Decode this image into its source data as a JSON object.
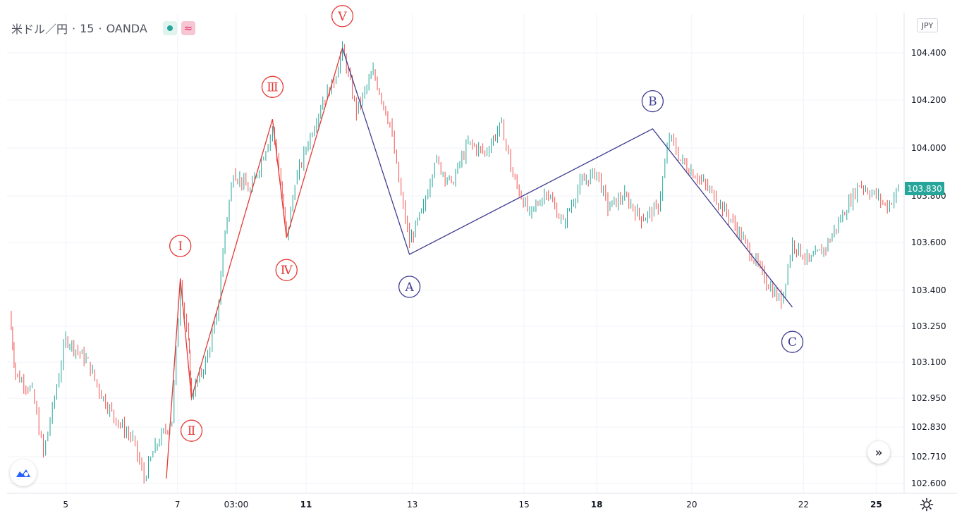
{
  "legend": {
    "symbol": "米ドル／円",
    "sep1": "·",
    "interval": "15",
    "sep2": "·",
    "source": "OANDA",
    "wave_badge": "≈"
  },
  "currency_badge": "JPY",
  "last_price": "103.830",
  "scroll_button": "»",
  "settings_icon": "gear-icon",
  "colors": {
    "up": "#26a69a",
    "down": "#ef5350",
    "impulse": "#e53935",
    "corrective": "#3f3d8f",
    "grid": "#f0f3fa",
    "axis_text": "#131722"
  },
  "chart_data": {
    "type": "line",
    "title": "米ドル／円 · 15 · OANDA",
    "series_name": "USD/JPY 15m candles (approximated as close path)",
    "ylim": [
      102.55,
      104.52
    ],
    "y_ticks": [
      "104.400",
      "104.200",
      "104.000",
      "103.800",
      "103.600",
      "103.400",
      "103.250",
      "103.100",
      "102.950",
      "102.830",
      "102.710",
      "102.600"
    ],
    "y_tick_values": [
      104.4,
      104.2,
      104.0,
      103.8,
      103.6,
      103.4,
      103.25,
      103.1,
      102.95,
      102.83,
      102.71,
      102.6
    ],
    "x_ticks": [
      {
        "label": "5",
        "t": 4.0,
        "bold": false
      },
      {
        "label": "7",
        "t": 6.0,
        "bold": false
      },
      {
        "label": "03:00",
        "t": 7.05,
        "bold": false
      },
      {
        "label": "11",
        "t": 8.3,
        "bold": true
      },
      {
        "label": "13",
        "t": 10.2,
        "bold": false
      },
      {
        "label": "15",
        "t": 12.2,
        "bold": false
      },
      {
        "label": "18",
        "t": 13.5,
        "bold": true
      },
      {
        "label": "20",
        "t": 15.2,
        "bold": false
      },
      {
        "label": "22",
        "t": 17.2,
        "bold": false
      },
      {
        "label": "25",
        "t": 18.5,
        "bold": true
      }
    ],
    "x_range": [
      2.95,
      19.0
    ],
    "price_path": [
      [
        3.0,
        103.3
      ],
      [
        3.1,
        103.05
      ],
      [
        3.4,
        102.98
      ],
      [
        3.6,
        102.72
      ],
      [
        3.8,
        102.95
      ],
      [
        4.0,
        103.2
      ],
      [
        4.4,
        103.1
      ],
      [
        4.6,
        102.98
      ],
      [
        4.9,
        102.86
      ],
      [
        5.2,
        102.78
      ],
      [
        5.4,
        102.62
      ],
      [
        5.6,
        102.75
      ],
      [
        5.9,
        102.86
      ],
      [
        6.05,
        103.43
      ],
      [
        6.2,
        103.18
      ],
      [
        6.25,
        102.96
      ],
      [
        6.5,
        103.1
      ],
      [
        6.7,
        103.28
      ],
      [
        6.85,
        103.65
      ],
      [
        7.0,
        103.9
      ],
      [
        7.3,
        103.82
      ],
      [
        7.5,
        103.95
      ],
      [
        7.7,
        104.08
      ],
      [
        7.85,
        103.85
      ],
      [
        7.95,
        103.62
      ],
      [
        8.1,
        103.85
      ],
      [
        8.3,
        104.0
      ],
      [
        8.6,
        104.2
      ],
      [
        8.8,
        104.28
      ],
      [
        8.95,
        104.42
      ],
      [
        9.2,
        104.15
      ],
      [
        9.5,
        104.32
      ],
      [
        9.8,
        104.1
      ],
      [
        10.0,
        103.8
      ],
      [
        10.15,
        103.6
      ],
      [
        10.4,
        103.75
      ],
      [
        10.6,
        103.95
      ],
      [
        10.9,
        103.85
      ],
      [
        11.2,
        104.02
      ],
      [
        11.5,
        103.98
      ],
      [
        11.8,
        104.1
      ],
      [
        12.0,
        103.88
      ],
      [
        12.3,
        103.72
      ],
      [
        12.6,
        103.82
      ],
      [
        12.9,
        103.68
      ],
      [
        13.2,
        103.85
      ],
      [
        13.5,
        103.9
      ],
      [
        13.7,
        103.75
      ],
      [
        14.0,
        103.8
      ],
      [
        14.3,
        103.7
      ],
      [
        14.6,
        103.75
      ],
      [
        14.8,
        104.05
      ],
      [
        15.0,
        103.95
      ],
      [
        15.3,
        103.88
      ],
      [
        15.6,
        103.8
      ],
      [
        15.9,
        103.7
      ],
      [
        16.2,
        103.58
      ],
      [
        16.5,
        103.45
      ],
      [
        16.8,
        103.35
      ],
      [
        17.0,
        103.6
      ],
      [
        17.3,
        103.52
      ],
      [
        17.6,
        103.58
      ],
      [
        17.9,
        103.72
      ],
      [
        18.2,
        103.85
      ],
      [
        18.5,
        103.8
      ],
      [
        18.7,
        103.75
      ],
      [
        18.9,
        103.83
      ]
    ],
    "impulse_waves": {
      "points": [
        [
          5.8,
          102.62
        ],
        [
          6.05,
          103.45
        ],
        [
          6.25,
          102.95
        ],
        [
          7.7,
          104.12
        ],
        [
          7.95,
          103.62
        ],
        [
          8.95,
          104.42
        ]
      ],
      "labels": [
        "Ⅰ",
        "Ⅱ",
        "Ⅲ",
        "Ⅳ",
        "Ⅴ"
      ],
      "label_positions": [
        [
          6.05,
          103.55,
          "above"
        ],
        [
          6.25,
          102.85,
          "below"
        ],
        [
          7.7,
          104.22,
          "above"
        ],
        [
          7.95,
          103.52,
          "below"
        ],
        [
          8.95,
          104.52,
          "above"
        ]
      ]
    },
    "corrective_waves": {
      "points": [
        [
          8.95,
          104.42
        ],
        [
          10.15,
          103.55
        ],
        [
          14.5,
          104.08
        ],
        [
          17.0,
          103.33
        ]
      ],
      "labels": [
        "A",
        "B",
        "C"
      ],
      "label_positions": [
        [
          10.15,
          103.45,
          "below"
        ],
        [
          14.5,
          104.16,
          "above"
        ],
        [
          17.0,
          103.22,
          "below"
        ]
      ]
    }
  }
}
